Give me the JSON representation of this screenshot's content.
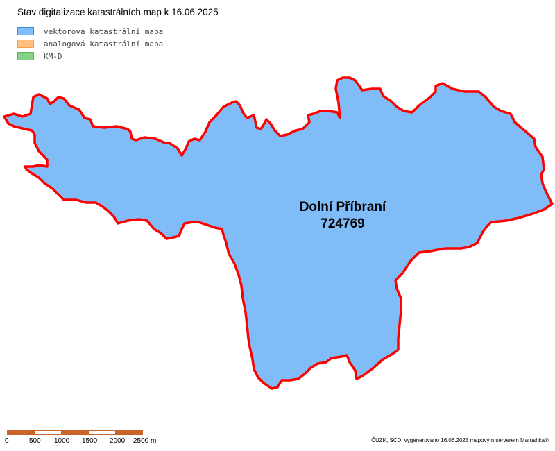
{
  "map": {
    "title": "Stav digitalizace katastrálních map k 16.06.2025",
    "legend": [
      {
        "label": "vektorová katastrální mapa",
        "fill": "#80bcf8",
        "border": "#3c8ce0"
      },
      {
        "label": "analogová katastrální mapa",
        "fill": "#ffc080",
        "border": "#ff9b3c"
      },
      {
        "label": "KM-D",
        "fill": "#88d088",
        "border": "#5cb45c"
      }
    ],
    "area": {
      "name": "Dolní Příbraní",
      "code": "724769",
      "fill": "#80bcf8",
      "outline": "#ff0000"
    },
    "scale": {
      "labels": [
        "0",
        "500",
        "1000",
        "1500",
        "2000",
        "2500 m"
      ],
      "segment_colors": [
        "#c86428",
        "#ffffff",
        "#c86428",
        "#ffffff",
        "#c86428"
      ]
    },
    "credit": "ČUZK, SCD, vygenerováno 16.06.2025 mapovým serverem Marushka®"
  }
}
